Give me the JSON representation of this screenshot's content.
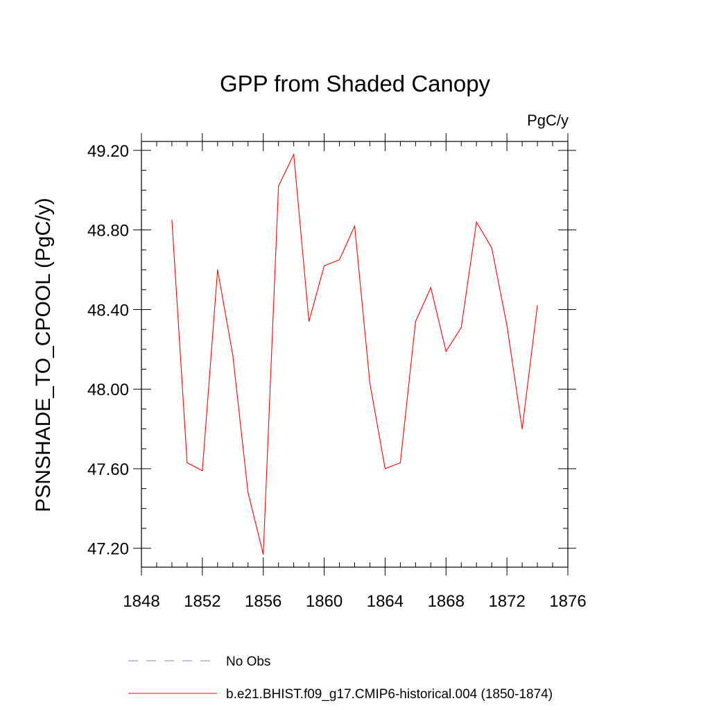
{
  "chart_data": {
    "type": "line",
    "title": "GPP from Shaded Canopy",
    "units_label": "PgC/y",
    "ylabel": "PSNSHADE_TO_CPOOL  (PgC/y)",
    "xlabel": "",
    "xlim": [
      1848,
      1876
    ],
    "ylim": [
      47.105,
      49.245
    ],
    "x_ticks": [
      1848,
      1852,
      1856,
      1860,
      1864,
      1868,
      1872,
      1876
    ],
    "y_ticks": [
      47.2,
      47.6,
      48.0,
      48.4,
      48.8,
      49.2
    ],
    "y_tick_labels": [
      "47.20",
      "47.60",
      "48.00",
      "48.40",
      "48.80",
      "49.20"
    ],
    "x_minor_step": 1,
    "y_minor_step": 0.1,
    "grid": false,
    "series": [
      {
        "name": "b.e21.BHIST.f09_g17.CMIP6-historical.004 (1850-1874)",
        "color": "#ff0000",
        "style": "solid",
        "x": [
          1850,
          1851,
          1852,
          1853,
          1854,
          1855,
          1856,
          1857,
          1858,
          1859,
          1860,
          1861,
          1862,
          1863,
          1864,
          1865,
          1866,
          1867,
          1868,
          1869,
          1870,
          1871,
          1872,
          1873,
          1874
        ],
        "values": [
          48.85,
          47.63,
          47.59,
          48.6,
          48.17,
          47.48,
          47.17,
          49.02,
          49.18,
          48.34,
          48.62,
          48.65,
          48.82,
          48.03,
          47.6,
          47.63,
          48.34,
          48.51,
          48.19,
          48.31,
          48.84,
          48.71,
          48.32,
          47.8,
          48.42
        ]
      }
    ],
    "legend": [
      {
        "label": "No Obs",
        "color": "#8080c8",
        "style": "dashed"
      },
      {
        "label": "b.e21.BHIST.f09_g17.CMIP6-historical.004 (1850-1874)",
        "color": "#ff0000",
        "style": "solid"
      }
    ]
  }
}
